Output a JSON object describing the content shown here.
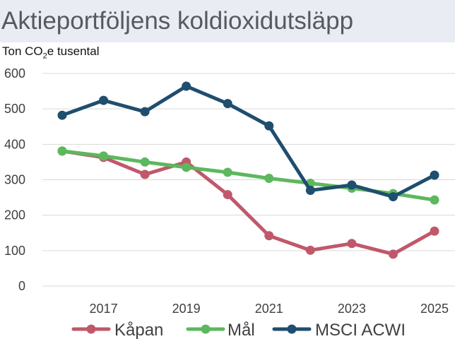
{
  "title": "Aktieportföljens koldioxidutsläpp",
  "unit_label": {
    "prefix": "Ton CO",
    "sub": "2",
    "suffix": "e tusental"
  },
  "colors": {
    "Kåpan": "#c0586b",
    "Mål": "#5cb85c",
    "MSCI ACWI": "#1f4e6e",
    "grid": "#d9d9d9",
    "axis_text": "#404040"
  },
  "chart_data": {
    "type": "line",
    "title": "Aktieportföljens koldioxidutsläpp",
    "ylabel": "Ton CO2e tusental",
    "xlabel": "",
    "x": [
      2016,
      2017,
      2018,
      2019,
      2020,
      2021,
      2022,
      2023,
      2024,
      2025
    ],
    "xticks": [
      "2017",
      "2019",
      "2021",
      "2023",
      "2025"
    ],
    "yticks": [
      "0",
      "100",
      "200",
      "300",
      "400",
      "500",
      "600"
    ],
    "ylim": [
      0,
      600
    ],
    "grid": true,
    "legend": "bottom",
    "series": [
      {
        "name": "Kåpan",
        "values": [
          381,
          363,
          315,
          350,
          258,
          142,
          101,
          120,
          90,
          155
        ]
      },
      {
        "name": "Mål",
        "values": [
          381,
          367,
          350,
          335,
          321,
          304,
          290,
          276,
          261,
          243
        ]
      },
      {
        "name": "MSCI ACWI",
        "values": [
          482,
          524,
          492,
          564,
          515,
          452,
          270,
          285,
          252,
          313
        ]
      }
    ]
  }
}
